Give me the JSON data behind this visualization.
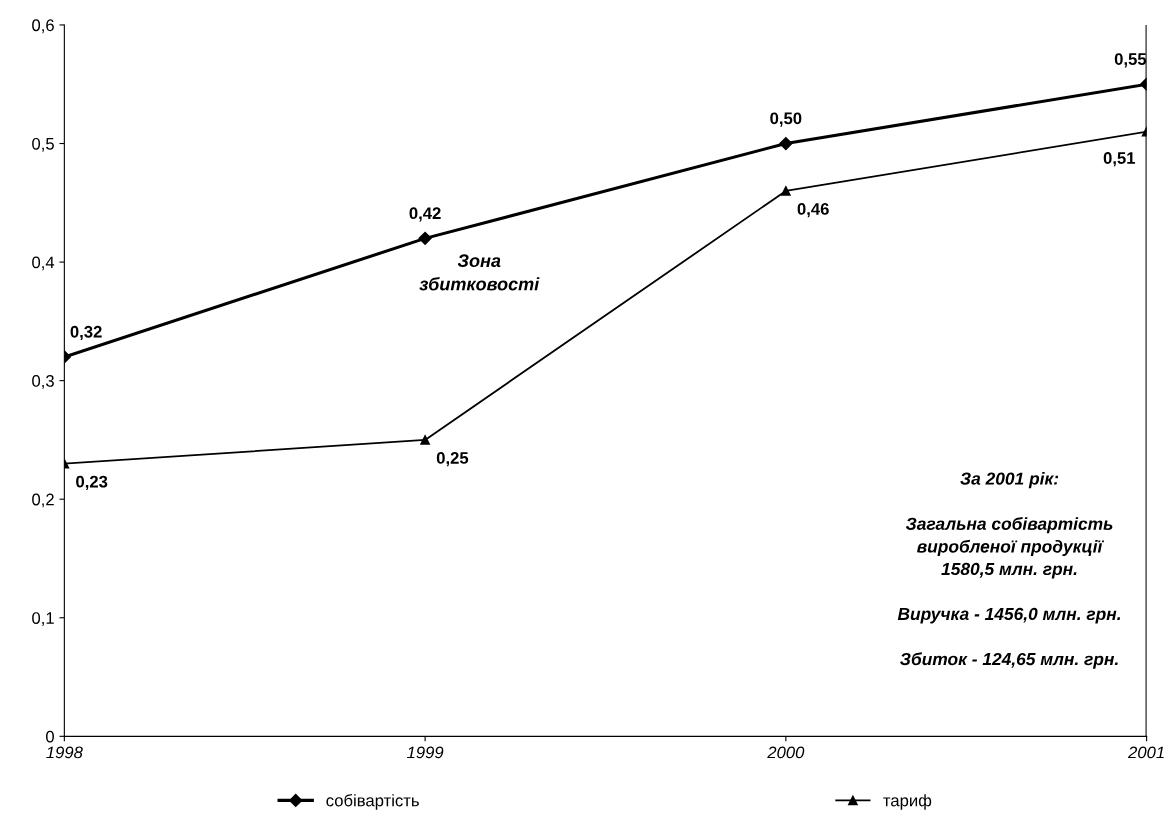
{
  "chart_data": {
    "type": "line",
    "categories": [
      "1998",
      "1999",
      "2000",
      "2001"
    ],
    "series": [
      {
        "name": "собівартість",
        "color": "#000000",
        "marker": "diamond",
        "values": [
          0.32,
          0.42,
          0.5,
          0.55
        ],
        "value_labels": [
          "0,32",
          "0,42",
          "0,50",
          "0,55"
        ]
      },
      {
        "name": "тариф",
        "color": "#000000",
        "marker": "triangle",
        "values": [
          0.23,
          0.25,
          0.46,
          0.51
        ],
        "value_labels": [
          "0,23",
          "0,25",
          "0,46",
          "0,51"
        ]
      }
    ],
    "ylim": [
      0,
      0.6
    ],
    "yticks": [
      0,
      {
        "value": 0.1,
        "label": "0,1"
      },
      {
        "value": 0.2,
        "label": "0,2"
      },
      {
        "value": 0.3,
        "label": "0,3"
      },
      {
        "value": 0.4,
        "label": "0,4"
      },
      {
        "value": 0.5,
        "label": "0,5"
      },
      {
        "value": 0.6,
        "label": "0,6"
      }
    ],
    "annotations": [
      "Зона\nзбитковості",
      "За 2001 рік:\n\nЗагальна собівартість\nвиробленої продукції\n1580,5 млн. грн.\n\nВиручка - 1456,0 млн. грн.\n\nЗбиток - 124,65 млн. грн."
    ],
    "legend": "bottom",
    "grid": false,
    "line_style": "solid"
  }
}
